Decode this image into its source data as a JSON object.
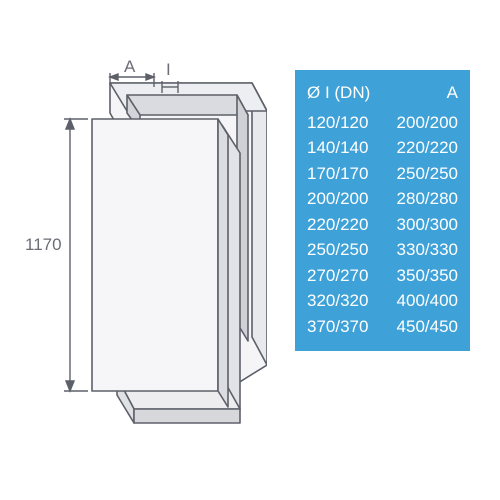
{
  "diagram": {
    "height_label": "1170",
    "top_labels": {
      "A": "A",
      "I": "I"
    },
    "stroke": "#5d6069",
    "fill_light": "#f5f5f7",
    "fill_dark": "#dadbe0",
    "label_color": "#6c6e75"
  },
  "table": {
    "background_color": "#3ea1d7",
    "text_color": "#ffffff",
    "font_size": 17,
    "header": {
      "col1": "Ø I (DN)",
      "col2": "A"
    },
    "rows": [
      {
        "col1": "120/120",
        "col2": "200/200"
      },
      {
        "col1": "140/140",
        "col2": "220/220"
      },
      {
        "col1": "170/170",
        "col2": "250/250"
      },
      {
        "col1": "200/200",
        "col2": "280/280"
      },
      {
        "col1": "220/220",
        "col2": "300/300"
      },
      {
        "col1": "250/250",
        "col2": "330/330"
      },
      {
        "col1": "270/270",
        "col2": "350/350"
      },
      {
        "col1": "320/320",
        "col2": "400/400"
      },
      {
        "col1": "370/370",
        "col2": "450/450"
      }
    ]
  }
}
